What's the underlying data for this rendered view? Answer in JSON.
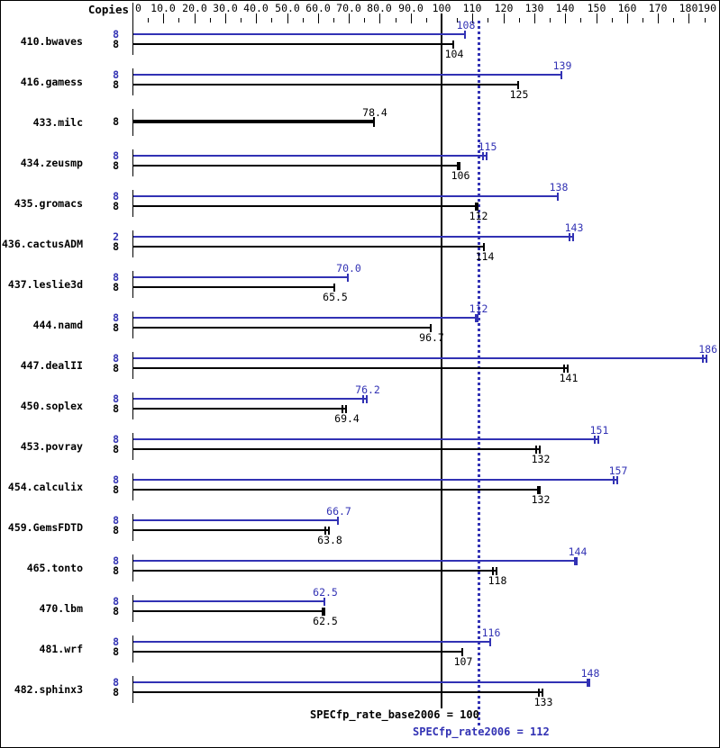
{
  "colors": {
    "peak": "#3232b4",
    "base": "#000000",
    "background": "#ffffff",
    "border": "#000000"
  },
  "chart_data": {
    "type": "bar",
    "orientation": "horizontal",
    "copies_header": "Copies",
    "axis": {
      "min": 0,
      "max": 190,
      "major_step": 10,
      "minor_step": 5,
      "tick_labels": [
        "0",
        "10.0",
        "20.0",
        "30.0",
        "40.0",
        "50.0",
        "60.0",
        "70.0",
        "80.0",
        "90.0",
        "100",
        "110",
        "120",
        "130",
        "140",
        "150",
        "160",
        "170",
        "180",
        "190"
      ]
    },
    "series_names": [
      "peak",
      "base"
    ],
    "benchmarks": [
      {
        "name": "410.bwaves",
        "peak": {
          "copies": "8",
          "value": 108,
          "label": "108",
          "cap": "single"
        },
        "base": {
          "copies": "8",
          "value": 104,
          "label": "104",
          "cap": "single"
        }
      },
      {
        "name": "416.gamess",
        "peak": {
          "copies": "8",
          "value": 139,
          "label": "139",
          "cap": "single"
        },
        "base": {
          "copies": "8",
          "value": 125,
          "label": "125",
          "cap": "single"
        }
      },
      {
        "name": "433.milc",
        "peak": null,
        "base": {
          "copies": "8",
          "value": 78.4,
          "label": "78.4",
          "cap": "single",
          "thick": true,
          "label_above": true
        }
      },
      {
        "name": "434.zeusmp",
        "peak": {
          "copies": "8",
          "value": 115,
          "label": "115",
          "cap": "double"
        },
        "base": {
          "copies": "8",
          "value": 106,
          "label": "106",
          "cap": "thick"
        }
      },
      {
        "name": "435.gromacs",
        "peak": {
          "copies": "8",
          "value": 138,
          "label": "138",
          "cap": "single"
        },
        "base": {
          "copies": "8",
          "value": 112,
          "label": "112",
          "cap": "thick"
        }
      },
      {
        "name": "436.cactusADM",
        "peak": {
          "copies": "2",
          "value": 143,
          "label": "143",
          "cap": "double"
        },
        "base": {
          "copies": "8",
          "value": 114,
          "label": "114",
          "cap": "single"
        }
      },
      {
        "name": "437.leslie3d",
        "peak": {
          "copies": "8",
          "value": 70.0,
          "label": "70.0",
          "cap": "single"
        },
        "base": {
          "copies": "8",
          "value": 65.5,
          "label": "65.5",
          "cap": "single"
        }
      },
      {
        "name": "444.namd",
        "peak": {
          "copies": "8",
          "value": 112,
          "label": "112",
          "cap": "thick"
        },
        "base": {
          "copies": "8",
          "value": 96.7,
          "label": "96.7",
          "cap": "single"
        }
      },
      {
        "name": "447.dealII",
        "peak": {
          "copies": "8",
          "value": 186,
          "label": "186",
          "cap": "double"
        },
        "base": {
          "copies": "8",
          "value": 141,
          "label": "141",
          "cap": "double"
        }
      },
      {
        "name": "450.soplex",
        "peak": {
          "copies": "8",
          "value": 76.2,
          "label": "76.2",
          "cap": "double"
        },
        "base": {
          "copies": "8",
          "value": 69.4,
          "label": "69.4",
          "cap": "double"
        }
      },
      {
        "name": "453.povray",
        "peak": {
          "copies": "8",
          "value": 151,
          "label": "151",
          "cap": "double"
        },
        "base": {
          "copies": "8",
          "value": 132,
          "label": "132",
          "cap": "double"
        }
      },
      {
        "name": "454.calculix",
        "peak": {
          "copies": "8",
          "value": 157,
          "label": "157",
          "cap": "double"
        },
        "base": {
          "copies": "8",
          "value": 132,
          "label": "132",
          "cap": "thick"
        }
      },
      {
        "name": "459.GemsFDTD",
        "peak": {
          "copies": "8",
          "value": 66.7,
          "label": "66.7",
          "cap": "single"
        },
        "base": {
          "copies": "8",
          "value": 63.8,
          "label": "63.8",
          "cap": "double"
        }
      },
      {
        "name": "465.tonto",
        "peak": {
          "copies": "8",
          "value": 144,
          "label": "144",
          "cap": "thick"
        },
        "base": {
          "copies": "8",
          "value": 118,
          "label": "118",
          "cap": "double"
        }
      },
      {
        "name": "470.lbm",
        "peak": {
          "copies": "8",
          "value": 62.5,
          "label": "62.5",
          "cap": "single"
        },
        "base": {
          "copies": "8",
          "value": 62.5,
          "label": "62.5",
          "cap": "thick"
        }
      },
      {
        "name": "481.wrf",
        "peak": {
          "copies": "8",
          "value": 116,
          "label": "116",
          "cap": "single"
        },
        "base": {
          "copies": "8",
          "value": 107,
          "label": "107",
          "cap": "single"
        }
      },
      {
        "name": "482.sphinx3",
        "peak": {
          "copies": "8",
          "value": 148,
          "label": "148",
          "cap": "thick"
        },
        "base": {
          "copies": "8",
          "value": 133,
          "label": "133",
          "cap": "double"
        }
      }
    ],
    "reference_lines": [
      {
        "series": "base",
        "value": 100,
        "label": "SPECfp_rate_base2006 = 100",
        "style": "solid"
      },
      {
        "series": "peak",
        "value": 112,
        "label": "SPECfp_rate2006 = 112",
        "style": "dotted"
      }
    ]
  }
}
